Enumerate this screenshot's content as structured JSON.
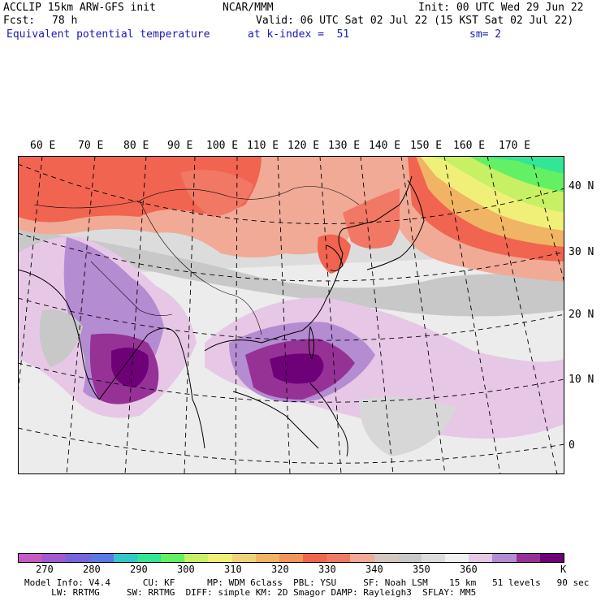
{
  "header": {
    "model_title": "ACCLIP 15km ARW-GFS init",
    "center": "NCAR/MMM",
    "init": "Init: 00 UTC Wed 29 Jun 22",
    "fcst_label": "Fcst:",
    "fcst_value": "78 h",
    "valid": "Valid: 06 UTC Sat 02 Jul 22 (15 KST Sat 02 Jul 22)",
    "field": "Equivalent potential temperature",
    "level": "at k-index =  51",
    "smooth": "sm= 2"
  },
  "longitude_labels": [
    "60 E",
    "70 E",
    "80 E",
    "90 E",
    "100 E",
    "110 E",
    "120 E",
    "130 E",
    "140 E",
    "150 E",
    "160 E",
    "170 E"
  ],
  "latitude_labels": [
    "40 N",
    "30 N",
    "20 N",
    "10 N",
    "0"
  ],
  "colorbar": {
    "colors": [
      "#c85ac8",
      "#a05ad2",
      "#7864dc",
      "#5a78e6",
      "#32c8c8",
      "#32e696",
      "#64f064",
      "#c8f064",
      "#f0f078",
      "#f0d278",
      "#f0b464",
      "#f0965a",
      "#f06450",
      "#f07864",
      "#f0aa96",
      "#d2c8be",
      "#c8c8c8",
      "#dcdcdc",
      "#f0f0f0",
      "#e6c8e6",
      "#b48cd2",
      "#963296",
      "#6e0078"
    ],
    "ticks": [
      "270",
      "280",
      "290",
      "300",
      "310",
      "320",
      "330",
      "340",
      "350",
      "360"
    ],
    "unit": "K"
  },
  "model_info": {
    "line1": "Model Info: V4.4      CU: KF      MP: WDM 6class  PBL: YSU     SF: Noah LSM    15 km   51 levels   90 sec",
    "line2": "     LW: RRTMG     SW: RRTMG  DIFF: simple KM: 2D Smagor DAMP: Rayleigh3  SFLAY: MM5"
  }
}
